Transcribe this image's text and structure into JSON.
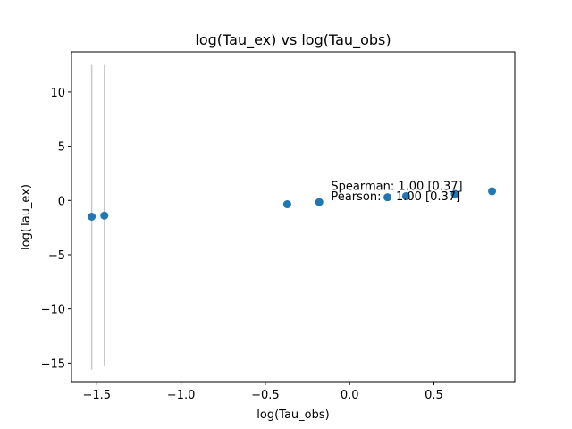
{
  "chart_data": {
    "type": "scatter",
    "title": "log(Tau_ex) vs log(Tau_obs)",
    "xlabel": "log(Tau_obs)",
    "ylabel": "log(Tau_ex)",
    "xlim": [
      -1.65,
      0.98
    ],
    "ylim": [
      -16.7,
      13.7
    ],
    "xticks": [
      -1.5,
      -1.0,
      -0.5,
      0.0,
      0.5
    ],
    "xtick_labels": [
      "−1.5",
      "−1.0",
      "−0.5",
      "0.0",
      "0.5"
    ],
    "yticks": [
      -15,
      -10,
      -5,
      0,
      5,
      10
    ],
    "ytick_labels": [
      "−15",
      "−10",
      "−5",
      "0",
      "5",
      "10"
    ],
    "grid": false,
    "marker_color": "#1f77b4",
    "errorbar_color": "#c8c8c8",
    "points": [
      {
        "x": -1.53,
        "y": -1.5,
        "ylow": -15.6,
        "yhigh": 12.5
      },
      {
        "x": -1.455,
        "y": -1.4,
        "ylow": -15.3,
        "yhigh": 12.5
      },
      {
        "x": -0.37,
        "y": -0.35
      },
      {
        "x": -0.18,
        "y": -0.15
      },
      {
        "x": 0.225,
        "y": 0.3
      },
      {
        "x": 0.335,
        "y": 0.4
      },
      {
        "x": 0.625,
        "y": 0.6
      },
      {
        "x": 0.845,
        "y": 0.85
      }
    ],
    "annotations": [
      {
        "text": "Spearman: 1.00 [0.37]",
        "x": -0.11,
        "y": 1.4
      },
      {
        "text": "Pearson:    1.00 [0.37]",
        "x": -0.11,
        "y": 0.45
      }
    ]
  }
}
